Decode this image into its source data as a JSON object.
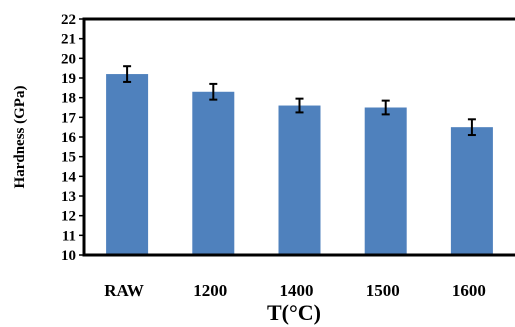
{
  "chart_data": {
    "type": "bar",
    "categories": [
      "RAW",
      "1200",
      "1400",
      "1500",
      "1600"
    ],
    "values": [
      19.2,
      18.3,
      17.6,
      17.5,
      16.5
    ],
    "error": [
      0.4,
      0.4,
      0.35,
      0.35,
      0.4
    ],
    "title": "",
    "xlabel": "T(°C)",
    "ylabel": "Hardness (GPa)",
    "ylim": [
      10,
      22
    ],
    "yticks": [
      10,
      11,
      12,
      13,
      14,
      15,
      16,
      17,
      18,
      19,
      20,
      21,
      22
    ],
    "grid": false,
    "legend": "none",
    "bar_color": "#4f81bd"
  }
}
